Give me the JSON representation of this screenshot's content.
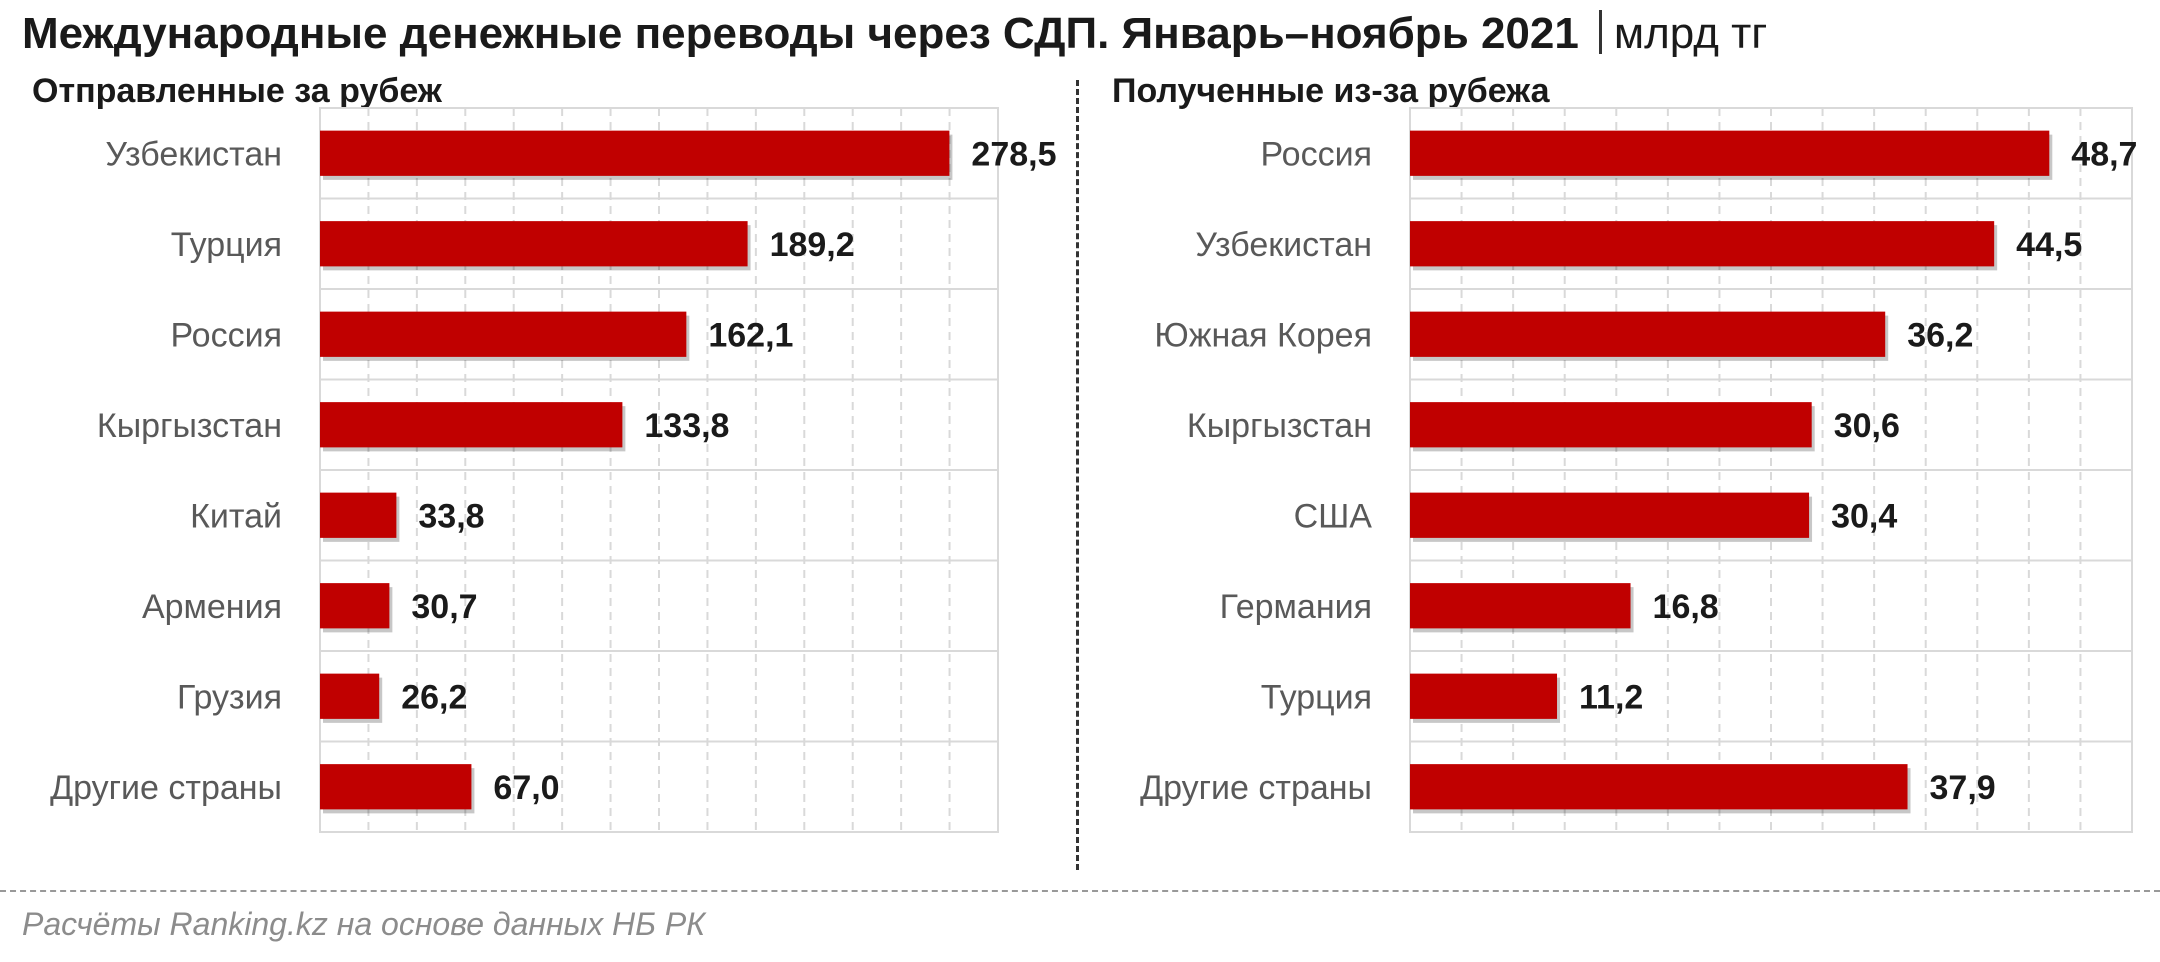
{
  "header": {
    "title": "Международные денежные переводы через СДП. Январь–ноябрь 2021",
    "unit": "млрд тг"
  },
  "source": "Расчёты Ranking.kz на основе данных НБ РК",
  "colors": {
    "bar": "#c00000",
    "grid": "#d9d9d9"
  },
  "chart_data": [
    {
      "type": "bar",
      "orientation": "horizontal",
      "title": "Отправленные за рубеж",
      "categories": [
        "Узбекистан",
        "Турция",
        "Россия",
        "Кыргызстан",
        "Китай",
        "Армения",
        "Грузия",
        "Другие страны"
      ],
      "values": [
        278.5,
        189.2,
        162.1,
        133.8,
        33.8,
        30.7,
        26.2,
        67.0
      ],
      "value_labels": [
        "278,5",
        "189,2",
        "162,1",
        "133,8",
        "33,8",
        "30,7",
        "26,2",
        "67,0"
      ],
      "xlim": [
        0,
        300
      ],
      "grid": true
    },
    {
      "type": "bar",
      "orientation": "horizontal",
      "title": "Полученные из-за рубежа",
      "categories": [
        "Россия",
        "Узбекистан",
        "Южная Корея",
        "Кыргызстан",
        "США",
        "Германия",
        "Турция",
        "Другие страны"
      ],
      "values": [
        48.7,
        44.5,
        36.2,
        30.6,
        30.4,
        16.8,
        11.2,
        37.9
      ],
      "value_labels": [
        "48,7",
        "44,5",
        "36,2",
        "30,6",
        "30,4",
        "16,8",
        "11,2",
        "37,9"
      ],
      "xlim": [
        0,
        55
      ],
      "grid": true
    }
  ]
}
